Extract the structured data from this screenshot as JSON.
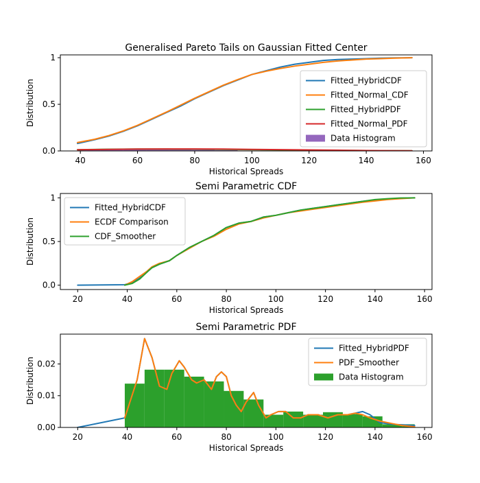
{
  "chart_data": [
    {
      "type": "line",
      "title": "Generalised Pareto Tails on Gaussian Fitted Center",
      "xlabel": "Historical Spreads",
      "ylabel": "Distribution",
      "xlim": [
        33,
        163
      ],
      "ylim": [
        0,
        1.03
      ],
      "xticks": [
        40,
        60,
        80,
        100,
        120,
        140,
        160
      ],
      "yticks": [
        0.0,
        0.5,
        1.0
      ],
      "legend_position": "lower-right",
      "series": [
        {
          "name": "Fitted_HybridCDF",
          "kind": "line",
          "color": "#1f77b4",
          "x": [
            39,
            45,
            50,
            55,
            60,
            65,
            70,
            75,
            80,
            85,
            90,
            95,
            100,
            105,
            110,
            115,
            120,
            125,
            130,
            135,
            140,
            145,
            150,
            156
          ],
          "y": [
            0.08,
            0.12,
            0.16,
            0.21,
            0.27,
            0.34,
            0.41,
            0.48,
            0.56,
            0.63,
            0.7,
            0.76,
            0.82,
            0.86,
            0.9,
            0.93,
            0.95,
            0.97,
            0.98,
            0.985,
            0.99,
            0.995,
            0.998,
            1.0
          ]
        },
        {
          "name": "Fitted_Normal_CDF",
          "kind": "line",
          "color": "#ff7f0e",
          "x": [
            39,
            45,
            50,
            55,
            60,
            65,
            70,
            75,
            80,
            85,
            90,
            95,
            100,
            105,
            110,
            115,
            120,
            125,
            130,
            135,
            140,
            145,
            150,
            156
          ],
          "y": [
            0.09,
            0.125,
            0.165,
            0.215,
            0.275,
            0.345,
            0.415,
            0.49,
            0.565,
            0.635,
            0.705,
            0.765,
            0.82,
            0.855,
            0.885,
            0.91,
            0.93,
            0.95,
            0.965,
            0.975,
            0.985,
            0.99,
            0.995,
            1.0
          ]
        },
        {
          "name": "Fitted_HybridPDF",
          "kind": "line",
          "color": "#2ca02c",
          "x": [
            39,
            50,
            60,
            70,
            80,
            90,
            100,
            110,
            120,
            130,
            140,
            150,
            156
          ],
          "y": [
            0.013,
            0.018,
            0.02,
            0.02,
            0.019,
            0.017,
            0.014,
            0.011,
            0.008,
            0.006,
            0.004,
            0.003,
            0.002
          ]
        },
        {
          "name": "Fitted_Normal_PDF",
          "kind": "line",
          "color": "#d62728",
          "x": [
            39,
            50,
            60,
            70,
            80,
            90,
            100,
            110,
            120,
            130,
            140,
            150,
            156
          ],
          "y": [
            0.013,
            0.017,
            0.02,
            0.021,
            0.021,
            0.02,
            0.017,
            0.014,
            0.011,
            0.008,
            0.005,
            0.003,
            0.002
          ]
        },
        {
          "name": "Data Histogram",
          "kind": "hist",
          "color": "#9467bd",
          "bins": [
            39,
            47,
            55,
            63,
            71,
            79,
            87,
            95,
            103,
            111,
            119,
            127,
            135,
            143,
            151,
            156
          ],
          "values": [
            0.014,
            0.018,
            0.018,
            0.016,
            0.015,
            0.011,
            0.009,
            0.004,
            0.005,
            0.004,
            0.005,
            0.004,
            0.003,
            0.001,
            0.001
          ]
        }
      ]
    },
    {
      "type": "line",
      "title": "Semi Parametric CDF",
      "xlabel": "Historical Spreads",
      "ylabel": "Distribution",
      "xlim": [
        13,
        163
      ],
      "ylim": [
        -0.05,
        1.05
      ],
      "xticks": [
        20,
        40,
        60,
        80,
        100,
        120,
        140,
        160
      ],
      "yticks": [
        0.0,
        0.5,
        1.0
      ],
      "legend_position": "upper-left",
      "series": [
        {
          "name": "Fitted_HybridCDF",
          "kind": "line",
          "color": "#1f77b4",
          "x": [
            20,
            39,
            42,
            45,
            48,
            50,
            53,
            57,
            60,
            65,
            70,
            75,
            80,
            85,
            90,
            95,
            100,
            105,
            110,
            115,
            120,
            125,
            130,
            135,
            140,
            145,
            150,
            156
          ],
          "y": [
            0.0,
            0.005,
            0.03,
            0.08,
            0.15,
            0.2,
            0.24,
            0.28,
            0.34,
            0.43,
            0.5,
            0.57,
            0.66,
            0.71,
            0.73,
            0.78,
            0.8,
            0.83,
            0.86,
            0.88,
            0.9,
            0.92,
            0.94,
            0.96,
            0.975,
            0.985,
            0.995,
            1.0
          ]
        },
        {
          "name": "ECDF Comparison",
          "kind": "line",
          "color": "#ff7f0e",
          "x": [
            39,
            42,
            45,
            48,
            50,
            53,
            57,
            60,
            65,
            70,
            75,
            80,
            85,
            90,
            95,
            100,
            105,
            110,
            115,
            120,
            125,
            130,
            135,
            140,
            145,
            150,
            156
          ],
          "y": [
            0.0,
            0.04,
            0.1,
            0.16,
            0.21,
            0.25,
            0.28,
            0.34,
            0.42,
            0.5,
            0.56,
            0.64,
            0.7,
            0.73,
            0.77,
            0.8,
            0.83,
            0.85,
            0.87,
            0.89,
            0.91,
            0.93,
            0.95,
            0.965,
            0.98,
            0.99,
            1.0
          ]
        },
        {
          "name": "CDF_Smoother",
          "kind": "line",
          "color": "#2ca02c",
          "x": [
            39,
            42,
            45,
            48,
            50,
            53,
            57,
            60,
            65,
            70,
            75,
            80,
            85,
            90,
            95,
            100,
            105,
            110,
            115,
            120,
            125,
            130,
            135,
            140,
            145,
            150,
            156
          ],
          "y": [
            0.0,
            0.02,
            0.07,
            0.15,
            0.2,
            0.24,
            0.28,
            0.34,
            0.43,
            0.5,
            0.57,
            0.66,
            0.71,
            0.73,
            0.78,
            0.8,
            0.83,
            0.86,
            0.88,
            0.9,
            0.92,
            0.94,
            0.96,
            0.98,
            0.99,
            0.998,
            1.0
          ]
        }
      ]
    },
    {
      "type": "line",
      "title": "Semi Parametric PDF",
      "xlabel": "Historical Spreads",
      "ylabel": "Distribution",
      "xlim": [
        13,
        163
      ],
      "ylim": [
        0,
        0.0294
      ],
      "xticks": [
        20,
        40,
        60,
        80,
        100,
        120,
        140,
        160
      ],
      "yticks": [
        0.0,
        0.01,
        0.02
      ],
      "ytick_labels": [
        "0.00",
        "0.01",
        "0.02"
      ],
      "legend_position": "upper-right",
      "series": [
        {
          "name": "Fitted_HybridPDF",
          "kind": "line",
          "color": "#1f77b4",
          "x": [
            20,
            39,
            44,
            47,
            50,
            53,
            56,
            58,
            61,
            63,
            66,
            68,
            71,
            74,
            76,
            78,
            80,
            82,
            84,
            86,
            88,
            91,
            93,
            96,
            98,
            101,
            104,
            107,
            110,
            113,
            117,
            121,
            125,
            129,
            132,
            135,
            138,
            142,
            147,
            151,
            156
          ],
          "y": [
            0.0,
            0.003,
            0.015,
            0.028,
            0.022,
            0.013,
            0.012,
            0.017,
            0.021,
            0.019,
            0.015,
            0.014,
            0.015,
            0.012,
            0.016,
            0.0175,
            0.016,
            0.01,
            0.007,
            0.005,
            0.008,
            0.011,
            0.007,
            0.003,
            0.004,
            0.005,
            0.005,
            0.003,
            0.003,
            0.004,
            0.004,
            0.003,
            0.004,
            0.004,
            0.0045,
            0.005,
            0.004,
            0.0015,
            0.001,
            0.0008,
            0.0006
          ]
        },
        {
          "name": "PDF_Smoother",
          "kind": "line",
          "color": "#ff7f0e",
          "x": [
            39,
            44,
            47,
            50,
            53,
            56,
            58,
            61,
            63,
            66,
            68,
            71,
            74,
            76,
            78,
            80,
            82,
            84,
            86,
            88,
            91,
            93,
            96,
            98,
            101,
            104,
            107,
            110,
            113,
            117,
            121,
            125,
            129,
            132,
            135,
            138,
            142,
            147,
            151,
            156
          ],
          "y": [
            0.003,
            0.015,
            0.028,
            0.022,
            0.013,
            0.012,
            0.017,
            0.021,
            0.019,
            0.015,
            0.014,
            0.015,
            0.012,
            0.016,
            0.0175,
            0.016,
            0.01,
            0.007,
            0.005,
            0.008,
            0.011,
            0.007,
            0.003,
            0.004,
            0.005,
            0.005,
            0.003,
            0.003,
            0.004,
            0.004,
            0.003,
            0.004,
            0.004,
            0.0045,
            0.004,
            0.003,
            0.002,
            0.0012,
            0.0006,
            0.0002
          ]
        },
        {
          "name": "Data Histogram",
          "kind": "hist",
          "color": "#2ca02c",
          "bins": [
            39,
            47,
            55,
            63,
            71,
            79,
            87,
            95,
            103,
            111,
            119,
            127,
            135,
            143,
            151,
            156
          ],
          "values": [
            0.0138,
            0.0182,
            0.0182,
            0.016,
            0.0145,
            0.0115,
            0.0088,
            0.004,
            0.005,
            0.004,
            0.0048,
            0.0042,
            0.0035,
            0.001,
            0.001
          ]
        }
      ]
    }
  ]
}
